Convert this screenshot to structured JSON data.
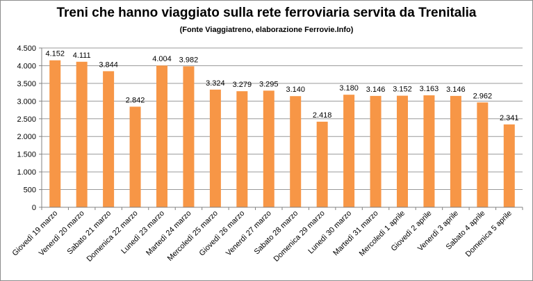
{
  "chart_data": {
    "type": "bar",
    "title": "Treni che hanno viaggiato sulla rete ferroviaria servita da Trenitalia",
    "subtitle": "(Fonte Viaggiatreno, elaborazione Ferrovie.Info)",
    "xlabel": "",
    "ylabel": "",
    "ylim": [
      0,
      4500
    ],
    "yticks": [
      0,
      500,
      1000,
      1500,
      2000,
      2500,
      3000,
      3500,
      4000,
      4500
    ],
    "ytick_labels": [
      "0",
      "500",
      "1.000",
      "1.500",
      "2.000",
      "2.500",
      "3.000",
      "3.500",
      "4.000",
      "4.500"
    ],
    "grid": true,
    "legend": "none",
    "bar_color": "#F79646",
    "categories": [
      "Giovedì 19 marzo",
      "Venerdì 20 marzo",
      "Sabato 21 marzo",
      "Domenica 22 marzo",
      "Lunedì 23 marzo",
      "Martedì 24 marzo",
      "Mercoledì 25 marzo",
      "Giovedì 26 marzo",
      "Venerdì 27 marzo",
      "Sabato 28 marzo",
      "Domenica 29 marzo",
      "Lunedì 30 marzo",
      "Martedì 31 marzo",
      "Mercoledì 1 aprile",
      "Giovedì 2 aprile",
      "Venerdì 3 aprile",
      "Sabato 4 aprile",
      "Domenica 5 aprile"
    ],
    "values": [
      4152,
      4111,
      3844,
      2842,
      4004,
      3982,
      3324,
      3279,
      3295,
      3140,
      2418,
      3180,
      3146,
      3152,
      3163,
      3146,
      2962,
      2341
    ],
    "value_labels": [
      "4.152",
      "4.111",
      "3.844",
      "2.842",
      "4.004",
      "3.982",
      "3.324",
      "3.279",
      "3.295",
      "3.140",
      "2.418",
      "3.180",
      "3.146",
      "3.152",
      "3.163",
      "3.146",
      "2.962",
      "2.341"
    ]
  }
}
